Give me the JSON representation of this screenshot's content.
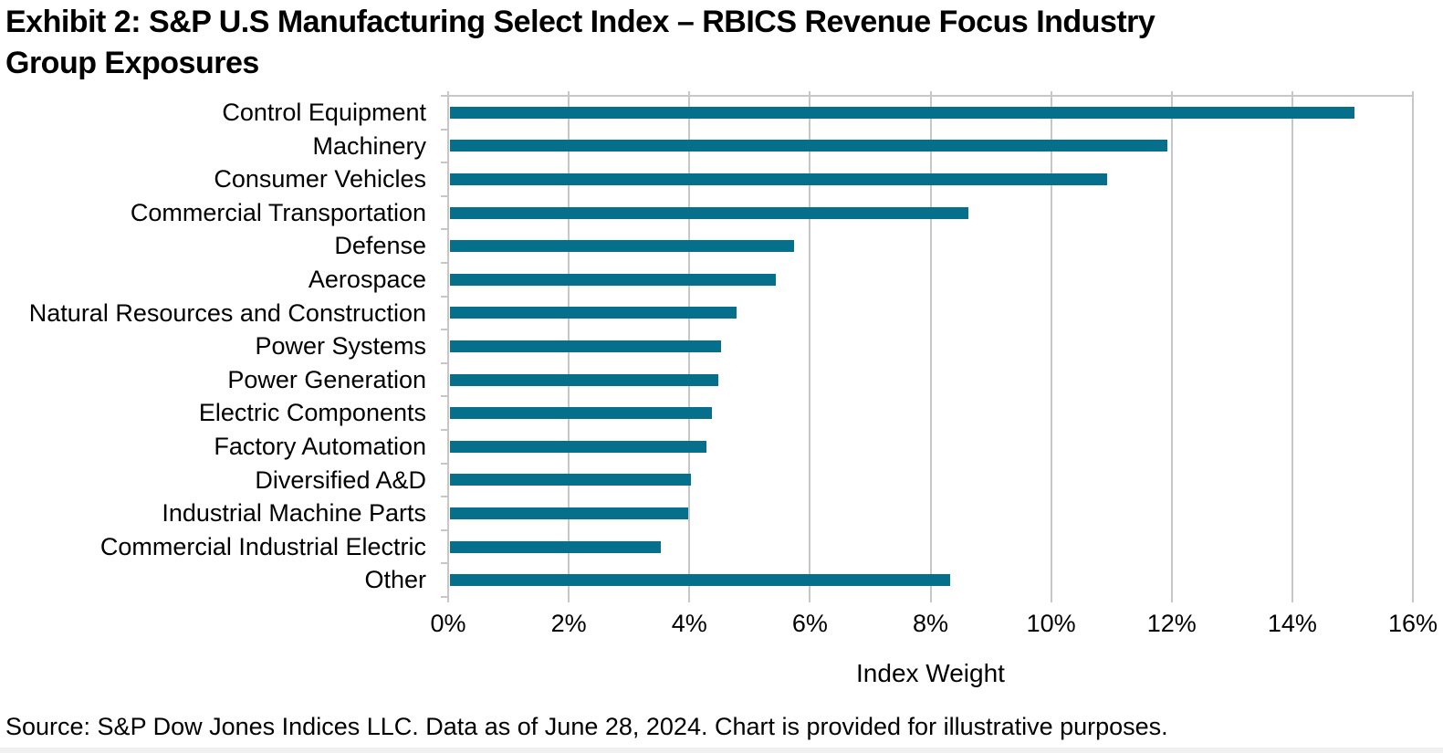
{
  "title_line1": "Exhibit 2: S&P U.S Manufacturing Select Index – RBICS Revenue Focus Industry",
  "title_line2": "Group Exposures",
  "source": "Source: S&P Dow Jones Indices LLC. Data as of June 28, 2024. Chart is provided for illustrative purposes.",
  "chart_data": {
    "type": "bar",
    "orientation": "horizontal",
    "title": "Exhibit 2: S&P U.S Manufacturing Select Index – RBICS Revenue Focus Industry Group Exposures",
    "categories": [
      "Control Equipment",
      "Machinery",
      "Consumer Vehicles",
      "Commercial Transportation",
      "Defense",
      "Aerospace",
      "Natural Resources and Construction",
      "Power Systems",
      "Power Generation",
      "Electric Components",
      "Factory Automation",
      "Diversified A&D",
      "Industrial Machine Parts",
      "Commercial Industrial Electric",
      "Other"
    ],
    "values": [
      15.0,
      11.9,
      10.9,
      8.6,
      5.7,
      5.4,
      4.75,
      4.5,
      4.45,
      4.35,
      4.25,
      4.0,
      3.95,
      3.5,
      8.3
    ],
    "value_unit": "%",
    "xlabel": "Index Weight",
    "ylabel": "",
    "xlim": [
      0,
      16
    ],
    "xticks": [
      0,
      2,
      4,
      6,
      8,
      10,
      12,
      14,
      16
    ],
    "xtick_labels": [
      "0%",
      "2%",
      "4%",
      "6%",
      "8%",
      "10%",
      "12%",
      "14%",
      "16%"
    ],
    "grid": true,
    "legend": false,
    "bar_color": "#06708C",
    "gridline_color": "#C7C7C7",
    "text_color": "#000000"
  }
}
